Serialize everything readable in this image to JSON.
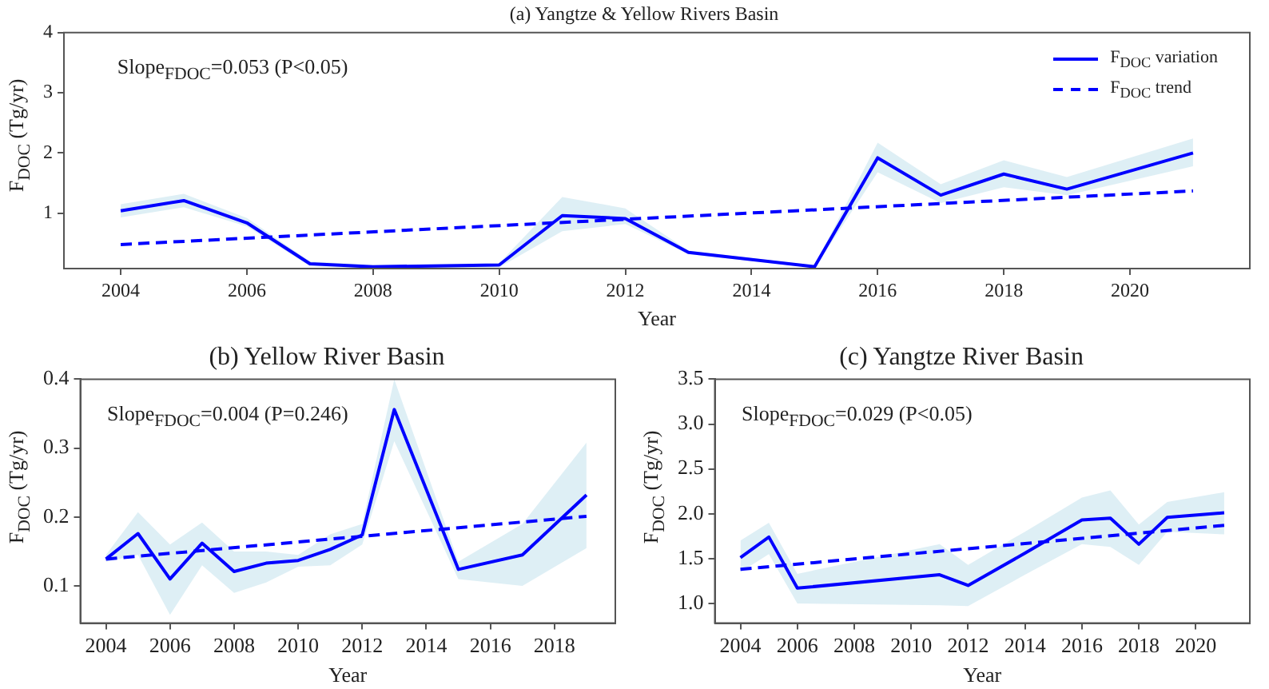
{
  "chart_data": [
    {
      "type": "line",
      "title": "(a) Yangtze & Yellow Rivers Basin",
      "xlabel": "Year",
      "ylabel": "F$_{DOC}$ (Tg/yr)",
      "annotations": [
        "Slope$_{FDOC}$=0.053 (P<0.05)"
      ],
      "legend": "top right",
      "marker": "none",
      "grid": false,
      "xlim": [
        2003.1,
        2021.9
      ],
      "xticks": [
        2004,
        2006,
        2008,
        2010,
        2012,
        2014,
        2016,
        2018,
        2020
      ],
      "ylim": [
        0.08,
        4
      ],
      "yticks": [
        1,
        2,
        3,
        4
      ],
      "series": [
        {
          "name": "F$_{DOC}$ variation",
          "color": "#0000ff",
          "line_style": "solid",
          "x": [
            2004,
            2005,
            2006,
            2007,
            2008,
            2010,
            2011,
            2012,
            2013,
            2015,
            2016,
            2017,
            2018,
            2019,
            2021
          ],
          "values": [
            1.04,
            1.21,
            0.84,
            0.16,
            0.11,
            0.14,
            0.96,
            0.91,
            0.35,
            0.11,
            1.92,
            1.3,
            1.65,
            1.4,
            2.0
          ],
          "lower": [
            0.93,
            1.1,
            0.78,
            0.12,
            0.08,
            0.1,
            0.7,
            0.82,
            0.32,
            0.09,
            1.68,
            1.17,
            1.43,
            1.3,
            1.78
          ],
          "upper": [
            1.15,
            1.32,
            0.92,
            0.2,
            0.14,
            0.17,
            1.27,
            1.08,
            0.38,
            0.13,
            2.17,
            1.48,
            1.88,
            1.6,
            2.24
          ]
        },
        {
          "name": "F$_{DOC}$ trend",
          "color": "#0000ff",
          "line_style": "dashed",
          "x": [
            2004,
            2021
          ],
          "values": [
            0.48,
            1.37
          ]
        }
      ]
    },
    {
      "type": "line",
      "title": "(b) Yellow River Basin",
      "xlabel": "Year",
      "ylabel": "F$_{DOC}$ (Tg/yr)",
      "annotations": [
        "Slope$_{FDOC}$=0.004 (P=0.246)"
      ],
      "marker": "none",
      "grid": false,
      "xlim": [
        2003.2,
        2019.9
      ],
      "xticks": [
        2004,
        2006,
        2008,
        2010,
        2012,
        2014,
        2016,
        2018
      ],
      "ylim": [
        0.046,
        0.4
      ],
      "yticks": [
        0.1,
        0.2,
        0.3,
        0.4
      ],
      "series": [
        {
          "color": "#0000ff",
          "line_style": "solid",
          "x": [
            2004,
            2005,
            2006,
            2007,
            2008,
            2009,
            2010,
            2011,
            2012,
            2013,
            2015,
            2017,
            2019
          ],
          "values": [
            0.139,
            0.176,
            0.11,
            0.162,
            0.121,
            0.133,
            0.137,
            0.153,
            0.174,
            0.356,
            0.124,
            0.145,
            0.232
          ],
          "lower": [
            0.135,
            0.145,
            0.058,
            0.13,
            0.09,
            0.105,
            0.128,
            0.13,
            0.16,
            0.31,
            0.11,
            0.1,
            0.155
          ],
          "upper": [
            0.145,
            0.207,
            0.16,
            0.192,
            0.15,
            0.15,
            0.145,
            0.175,
            0.19,
            0.4,
            0.135,
            0.19,
            0.308
          ]
        },
        {
          "color": "#0000ff",
          "line_style": "dashed",
          "x": [
            2004,
            2019
          ],
          "values": [
            0.139,
            0.201
          ]
        }
      ]
    },
    {
      "type": "line",
      "title": "(c) Yangtze River Basin",
      "xlabel": "Year",
      "ylabel": "F$_{DOC}$ (Tg/yr)",
      "annotations": [
        "Slope$_{FDOC}$=0.029 (P<0.05)"
      ],
      "marker": "none",
      "grid": false,
      "xlim": [
        2003.1,
        2021.9
      ],
      "xticks": [
        2004,
        2006,
        2008,
        2010,
        2012,
        2014,
        2016,
        2018,
        2020
      ],
      "ylim": [
        0.78,
        3.5
      ],
      "yticks": [
        {
          "value": 1,
          "label": "1.0"
        },
        1.5,
        {
          "value": 2,
          "label": "2.0"
        },
        2.5,
        {
          "value": 3,
          "label": "3.0"
        },
        3.5
      ],
      "series": [
        {
          "color": "#0000ff",
          "line_style": "solid",
          "x": [
            2004,
            2005,
            2006,
            2011,
            2012,
            2014,
            2016,
            2017,
            2018,
            2019,
            2021
          ],
          "values": [
            1.51,
            1.74,
            1.17,
            1.32,
            1.2,
            1.56,
            1.93,
            1.95,
            1.66,
            1.96,
            2.01
          ],
          "lower": [
            1.35,
            1.55,
            1.0,
            0.98,
            0.97,
            1.32,
            1.66,
            1.63,
            1.43,
            1.8,
            1.77
          ],
          "upper": [
            1.7,
            1.9,
            1.33,
            1.66,
            1.43,
            1.8,
            2.18,
            2.26,
            1.88,
            2.13,
            2.24
          ]
        },
        {
          "color": "#0000ff",
          "line_style": "dashed",
          "x": [
            2004,
            2021
          ],
          "values": [
            1.38,
            1.87
          ]
        }
      ]
    }
  ]
}
